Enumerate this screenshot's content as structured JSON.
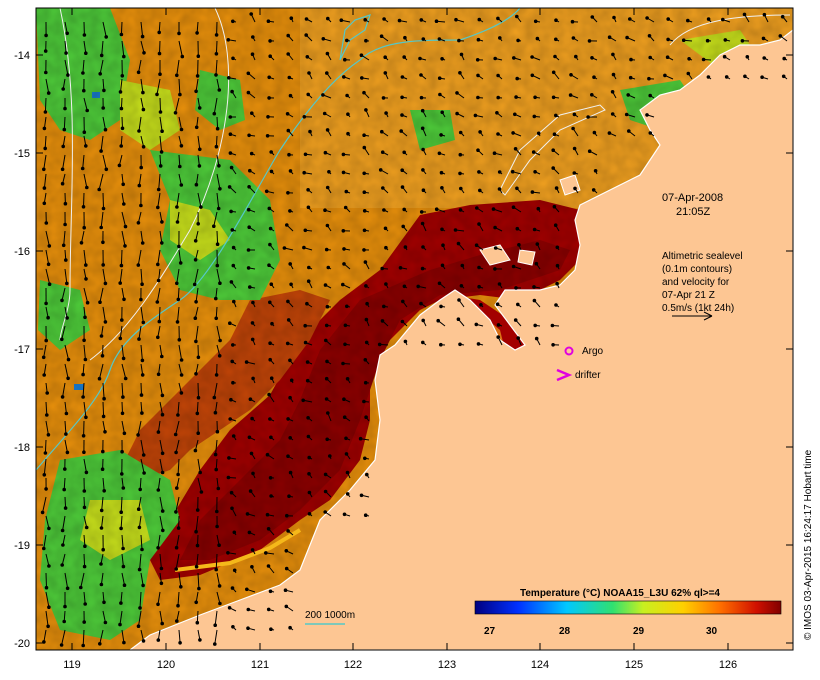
{
  "map": {
    "date_line1": "07-Apr-2008",
    "date_line2": "21:05Z",
    "altimetry_note": [
      "Altimetric sealevel",
      "(0.1m contours)",
      "and velocity for",
      "07-Apr 21 Z",
      "0.5m/s (1kt 24h)"
    ],
    "argo_label": "Argo",
    "drifter_label": "drifter",
    "isobath_label": "200  1000m",
    "credit": "© IMOS 03-Apr-2015 16:24:17 Hobart time",
    "colorbar": {
      "title": "Temperature (°C) NOAA15_L3U 62% ql>=4",
      "ticks": [
        "27",
        "28",
        "29",
        "30"
      ]
    },
    "axes": {
      "x_ticks": [
        "119",
        "120",
        "121",
        "122",
        "123",
        "124",
        "125",
        "126"
      ],
      "y_ticks": [
        "-14",
        "-15",
        "-16",
        "-17",
        "-18",
        "-19",
        "-20"
      ]
    },
    "colors": {
      "land": "#fdc693",
      "warmest": "#a30000",
      "warm": "#d9550a",
      "mid": "#f0a020",
      "cool": "#5fd13a",
      "argo": "#e000e0",
      "isobath": "#55c8c8"
    }
  }
}
